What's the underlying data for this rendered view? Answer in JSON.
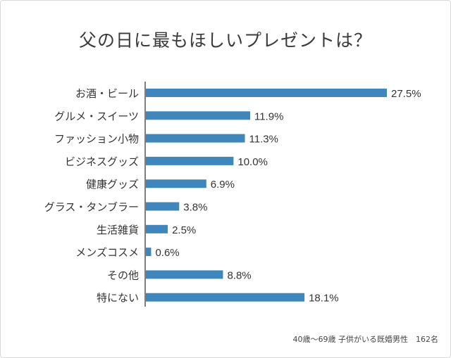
{
  "title": "父の日に最もほしいプレゼントは？",
  "footnote": "40歳〜69歳 子供がいる既婚男性　162名",
  "colors": {
    "bar": "#3f86bd",
    "axis": "#555555",
    "text": "#333333"
  },
  "chart_data": {
    "type": "bar",
    "orientation": "horizontal",
    "title": "父の日に最もほしいプレゼントは？",
    "categories": [
      "お酒・ビール",
      "グルメ・スイーツ",
      "ファッション小物",
      "ビジネスグッズ",
      "健康グッズ",
      "グラス・タンブラー",
      "生活雑貨",
      "メンズコスメ",
      "その他",
      "特にない"
    ],
    "values": [
      27.5,
      11.9,
      11.3,
      10.0,
      6.9,
      3.8,
      2.5,
      0.6,
      8.8,
      18.1
    ],
    "value_labels": [
      "27.5%",
      "11.9%",
      "11.3%",
      "10.0%",
      "6.9%",
      "3.8%",
      "2.5%",
      "0.6%",
      "8.8%",
      "18.1%"
    ],
    "unit": "%",
    "xlim": [
      0,
      30
    ],
    "grid": false,
    "legend": "none"
  }
}
